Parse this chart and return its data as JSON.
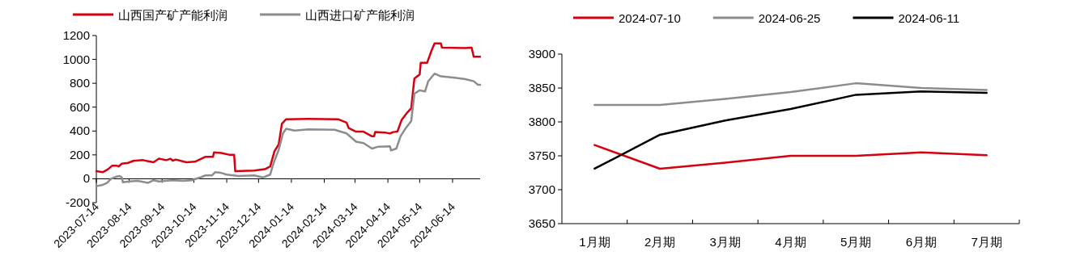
{
  "chart_data": [
    {
      "type": "line",
      "legend": "top",
      "xlim": [
        "2023-07-14",
        "2024-07-10"
      ],
      "ylim": [
        -200,
        1200
      ],
      "yticks": [
        -200,
        0,
        200,
        400,
        600,
        800,
        1000,
        1200
      ],
      "xticks": [
        "2023-07-14",
        "2023-08-14",
        "2023-09-14",
        "2023-10-14",
        "2023-11-14",
        "2023-12-14",
        "2024-01-14",
        "2024-02-14",
        "2024-03-14",
        "2024-04-14",
        "2024-05-14",
        "2024-06-14"
      ],
      "series": [
        {
          "name": "山西国产矿产能利润",
          "color": "#d7000f",
          "x": [
            "2023-07-14",
            "2023-07-20",
            "2023-07-25",
            "2023-07-29",
            "2023-08-02",
            "2023-08-04",
            "2023-08-07",
            "2023-08-13",
            "2023-08-18",
            "2023-08-27",
            "2023-09-01",
            "2023-09-06",
            "2023-09-11",
            "2023-09-18",
            "2023-09-22",
            "2023-09-24",
            "2023-09-27",
            "2023-10-07",
            "2023-10-15",
            "2023-10-25",
            "2023-11-01",
            "2023-11-02",
            "2023-11-09",
            "2023-11-17",
            "2023-11-21",
            "2023-11-22",
            "2023-12-10",
            "2023-12-20",
            "2023-12-25",
            "2023-12-29",
            "2024-01-02",
            "2024-01-05",
            "2024-01-09",
            "2024-01-30",
            "2024-02-27",
            "2024-03-06",
            "2024-03-08",
            "2024-03-15",
            "2024-03-22",
            "2024-03-30",
            "2024-04-01",
            "2024-04-02",
            "2024-04-12",
            "2024-04-16",
            "2024-04-19",
            "2024-04-23",
            "2024-04-27",
            "2024-05-02",
            "2024-05-06",
            "2024-05-09",
            "2024-05-14",
            "2024-05-15",
            "2024-05-21",
            "2024-05-25",
            "2024-05-28",
            "2024-06-03",
            "2024-06-04",
            "2024-06-26",
            "2024-07-02",
            "2024-07-04",
            "2024-07-10"
          ],
          "values": [
            64,
            55,
            80,
            110,
            110,
            103,
            126,
            133,
            150,
            156,
            147,
            138,
            168,
            156,
            168,
            152,
            161,
            138,
            143,
            184,
            184,
            221,
            216,
            200,
            200,
            64,
            69,
            80,
            103,
            230,
            288,
            460,
            499,
            501,
            499,
            471,
            425,
            395,
            395,
            356,
            356,
            391,
            386,
            380,
            391,
            395,
            494,
            552,
            591,
            840,
            874,
            971,
            971,
            1070,
            1134,
            1134,
            1099,
            1095,
            1099,
            1023,
            1023
          ]
        },
        {
          "name": "山西进口矿产能利润",
          "color": "#8c8c8c",
          "x": [
            "2023-07-14",
            "2023-07-20",
            "2023-07-24",
            "2023-07-28",
            "2023-08-02",
            "2023-08-05",
            "2023-08-07",
            "2023-08-08",
            "2023-08-14",
            "2023-08-22",
            "2023-09-01",
            "2023-09-06",
            "2023-09-11",
            "2023-09-24",
            "2023-10-04",
            "2023-10-12",
            "2023-10-20",
            "2023-10-25",
            "2023-10-31",
            "2023-11-03",
            "2023-11-08",
            "2023-11-14",
            "2023-11-25",
            "2023-12-10",
            "2023-12-18",
            "2023-12-25",
            "2023-12-28",
            "2024-01-02",
            "2024-01-06",
            "2024-01-09",
            "2024-01-17",
            "2024-01-30",
            "2024-02-24",
            "2024-03-06",
            "2024-03-15",
            "2024-03-22",
            "2024-03-30",
            "2024-04-05",
            "2024-04-16",
            "2024-04-17",
            "2024-04-22",
            "2024-04-26",
            "2024-05-01",
            "2024-05-06",
            "2024-05-09",
            "2024-05-14",
            "2024-05-19",
            "2024-05-22",
            "2024-05-28",
            "2024-06-03",
            "2024-06-16",
            "2024-06-26",
            "2024-07-04",
            "2024-07-08",
            "2024-07-10"
          ],
          "values": [
            -62,
            -51,
            -35,
            0,
            18,
            23,
            11,
            -30,
            -23,
            -18,
            -34,
            -12,
            -23,
            -12,
            -18,
            -12,
            11,
            28,
            28,
            55,
            51,
            35,
            23,
            28,
            11,
            35,
            127,
            242,
            380,
            419,
            403,
            414,
            410,
            380,
            311,
            299,
            253,
            269,
            271,
            237,
            253,
            357,
            426,
            483,
            713,
            741,
            731,
            816,
            881,
            858,
            846,
            835,
            817,
            787,
            787
          ]
        }
      ]
    },
    {
      "type": "line",
      "legend": "top",
      "categories": [
        "1月期",
        "2月期",
        "3月期",
        "4月期",
        "5月期",
        "6月期",
        "7月期"
      ],
      "ylim": [
        3650,
        3900
      ],
      "yticks": [
        3650,
        3700,
        3750,
        3800,
        3850,
        3900
      ],
      "series": [
        {
          "name": "2024-07-10",
          "color": "#d7000f",
          "values": [
            3766,
            3731,
            3740,
            3750,
            3750,
            3755,
            3751
          ]
        },
        {
          "name": "2024-06-25",
          "color": "#8c8c8c",
          "values": [
            3825,
            3825,
            3834,
            3844,
            3857,
            3850,
            3847
          ]
        },
        {
          "name": "2024-06-11",
          "color": "#000000",
          "values": [
            3731,
            3781,
            3802,
            3819,
            3840,
            3845,
            3843
          ]
        }
      ]
    }
  ]
}
